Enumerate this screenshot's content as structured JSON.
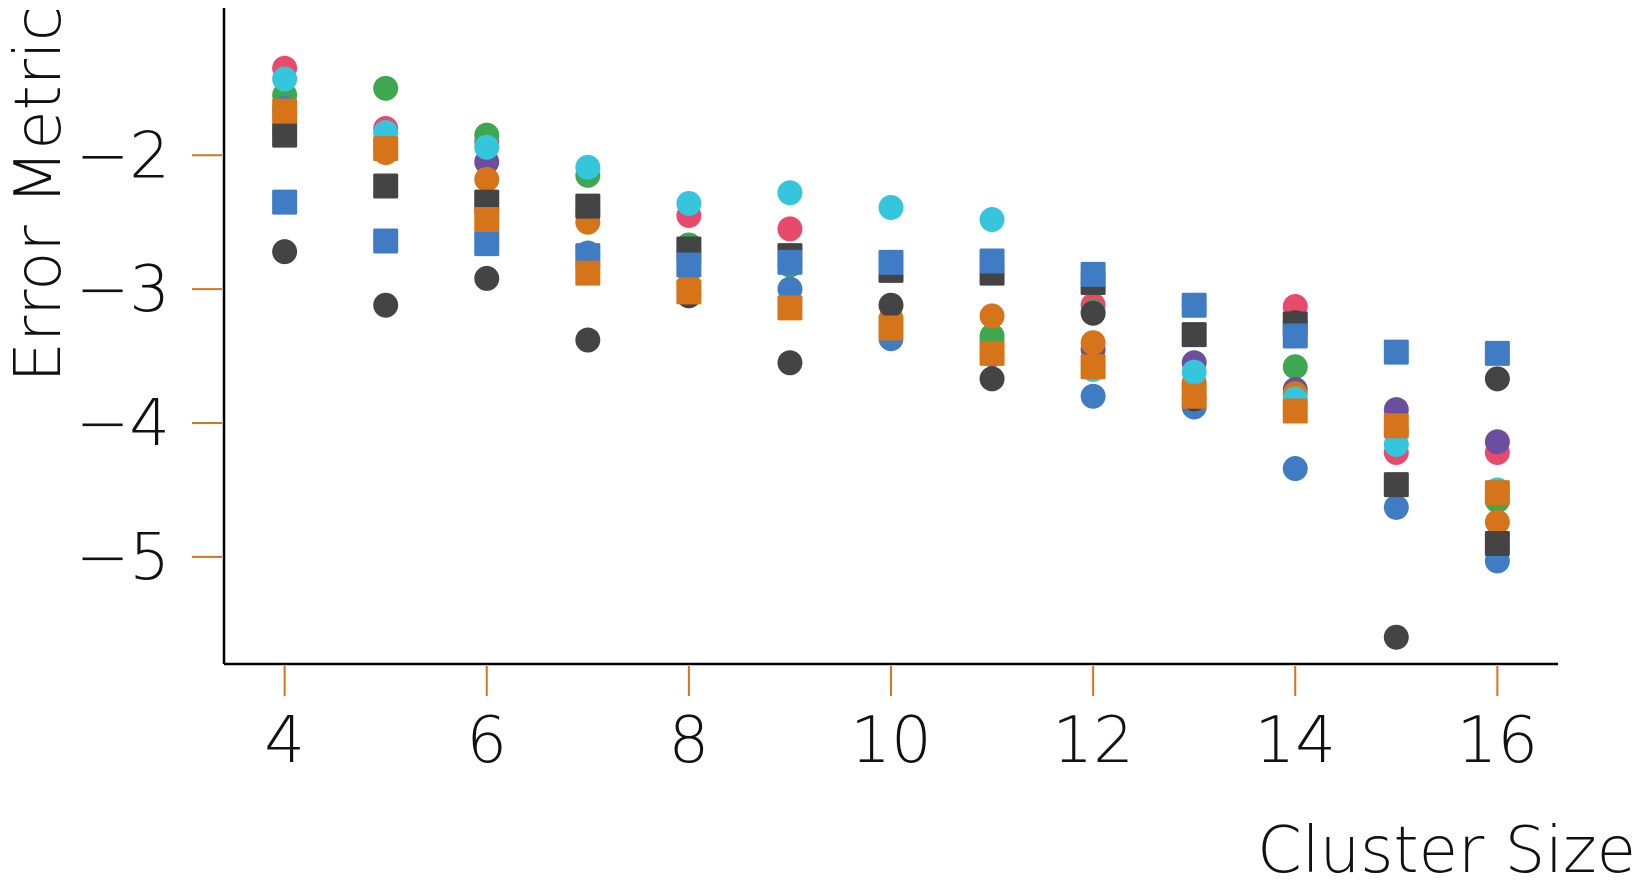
{
  "chart_data": {
    "type": "scatter",
    "title": "",
    "xlabel": "Cluster Size",
    "ylabel": "Error Metric",
    "xlim": [
      3.4,
      16.6
    ],
    "ylim": [
      -5.8,
      -0.9
    ],
    "xticks": [
      4,
      6,
      8,
      10,
      12,
      14,
      16
    ],
    "xtick_labels": [
      "4",
      "6",
      "8",
      "10",
      "12",
      "14",
      "16"
    ],
    "yticks": [
      -2,
      -3,
      -4,
      -5
    ],
    "ytick_labels": [
      "−2",
      "−3",
      "−4",
      "−5"
    ],
    "grid": false,
    "legend": "none",
    "tick_color": "#d6741a",
    "axis_color": "#000000",
    "series": [
      {
        "color": "#e84a6c",
        "marker": "circle",
        "points": [
          [
            4,
            -1.35
          ],
          [
            5,
            -1.8
          ],
          [
            6,
            -1.9
          ],
          [
            7,
            -2.4
          ],
          [
            8,
            -2.45
          ],
          [
            9,
            -2.55
          ],
          [
            10,
            -2.8
          ],
          [
            11,
            -3.38
          ],
          [
            12,
            -3.12
          ],
          [
            13,
            -3.12
          ],
          [
            14,
            -3.13
          ],
          [
            15,
            -4.22
          ],
          [
            16,
            -4.22
          ]
        ]
      },
      {
        "color": "#3da84f",
        "marker": "circle",
        "points": [
          [
            4,
            -1.55
          ],
          [
            5,
            -1.5
          ],
          [
            6,
            -1.85
          ],
          [
            7,
            -2.15
          ],
          [
            8,
            -2.67
          ],
          [
            9,
            -2.82
          ],
          [
            10,
            -2.85
          ],
          [
            11,
            -3.35
          ],
          [
            12,
            -3.17
          ],
          [
            13,
            -3.73
          ],
          [
            14,
            -3.58
          ],
          [
            15,
            -4.07
          ],
          [
            16,
            -4.58
          ]
        ]
      },
      {
        "color": "#6b4f9e",
        "marker": "circle",
        "points": [
          [
            4,
            -1.72
          ],
          [
            5,
            -1.95
          ],
          [
            6,
            -2.05
          ],
          [
            7,
            -2.44
          ],
          [
            8,
            -2.72
          ],
          [
            9,
            -2.78
          ],
          [
            10,
            -2.83
          ],
          [
            11,
            -3.49
          ],
          [
            12,
            -3.45
          ],
          [
            13,
            -3.55
          ],
          [
            14,
            -3.75
          ],
          [
            15,
            -3.9
          ],
          [
            16,
            -4.14
          ]
        ]
      },
      {
        "color": "#d6741a",
        "marker": "circle",
        "points": [
          [
            4,
            -1.82
          ],
          [
            5,
            -1.98
          ],
          [
            6,
            -2.18
          ],
          [
            7,
            -2.5
          ],
          [
            8,
            -2.97
          ],
          [
            9,
            -3.1
          ],
          [
            10,
            -3.22
          ],
          [
            11,
            -3.2
          ],
          [
            12,
            -3.4
          ],
          [
            13,
            -3.7
          ],
          [
            14,
            -3.78
          ],
          [
            15,
            -4.05
          ],
          [
            16,
            -4.74
          ]
        ]
      },
      {
        "color": "#3f7cc4",
        "marker": "circle",
        "points": [
          [
            4,
            -1.65
          ],
          [
            5,
            -1.9
          ],
          [
            6,
            -2.58
          ],
          [
            7,
            -2.73
          ],
          [
            8,
            -2.78
          ],
          [
            9,
            -3.0
          ],
          [
            10,
            -3.37
          ],
          [
            11,
            -3.48
          ],
          [
            12,
            -3.8
          ],
          [
            13,
            -3.88
          ],
          [
            14,
            -4.34
          ],
          [
            15,
            -4.63
          ],
          [
            16,
            -5.03
          ]
        ]
      },
      {
        "color": "#444444",
        "marker": "circle",
        "points": [
          [
            4,
            -2.72
          ],
          [
            5,
            -3.12
          ],
          [
            6,
            -2.92
          ],
          [
            7,
            -3.38
          ],
          [
            8,
            -3.05
          ],
          [
            9,
            -3.55
          ],
          [
            10,
            -3.12
          ],
          [
            11,
            -3.67
          ],
          [
            12,
            -3.18
          ],
          [
            13,
            -3.82
          ],
          [
            14,
            -3.25
          ],
          [
            15,
            -5.6
          ],
          [
            16,
            -3.67
          ]
        ]
      },
      {
        "color": "#35c5dd",
        "marker": "circle",
        "points": [
          [
            4,
            -1.43
          ],
          [
            5,
            -1.83
          ],
          [
            6,
            -1.94
          ],
          [
            7,
            -2.09
          ],
          [
            8,
            -2.36
          ],
          [
            9,
            -2.28
          ],
          [
            10,
            -2.39
          ],
          [
            11,
            -2.48
          ],
          [
            12,
            -3.6
          ],
          [
            13,
            -3.62
          ],
          [
            14,
            -3.82
          ],
          [
            15,
            -4.16
          ],
          [
            16,
            -4.5
          ]
        ]
      },
      {
        "color": "#444444",
        "marker": "square",
        "points": [
          [
            4,
            -1.85
          ],
          [
            5,
            -2.23
          ],
          [
            6,
            -2.35
          ],
          [
            7,
            -2.38
          ],
          [
            8,
            -2.7
          ],
          [
            9,
            -2.75
          ],
          [
            10,
            -2.86
          ],
          [
            11,
            -2.88
          ],
          [
            12,
            -2.95
          ],
          [
            13,
            -3.34
          ],
          [
            14,
            -3.26
          ],
          [
            15,
            -4.46
          ],
          [
            16,
            -4.9
          ]
        ]
      },
      {
        "color": "#3f7cc4",
        "marker": "square",
        "points": [
          [
            4,
            -2.35
          ],
          [
            5,
            -2.64
          ],
          [
            6,
            -2.66
          ],
          [
            7,
            -2.75
          ],
          [
            8,
            -2.82
          ],
          [
            9,
            -2.8
          ],
          [
            10,
            -2.8
          ],
          [
            11,
            -2.79
          ],
          [
            12,
            -2.89
          ],
          [
            13,
            -3.12
          ],
          [
            14,
            -3.35
          ],
          [
            15,
            -3.47
          ],
          [
            16,
            -3.48
          ]
        ]
      },
      {
        "color": "#d6741a",
        "marker": "square",
        "points": [
          [
            4,
            -1.67
          ],
          [
            5,
            -1.95
          ],
          [
            6,
            -2.48
          ],
          [
            7,
            -2.88
          ],
          [
            8,
            -3.02
          ],
          [
            9,
            -3.14
          ],
          [
            10,
            -3.29
          ],
          [
            11,
            -3.48
          ],
          [
            12,
            -3.58
          ],
          [
            13,
            -3.8
          ],
          [
            14,
            -3.91
          ],
          [
            15,
            -4.02
          ],
          [
            16,
            -4.52
          ]
        ]
      }
    ]
  }
}
